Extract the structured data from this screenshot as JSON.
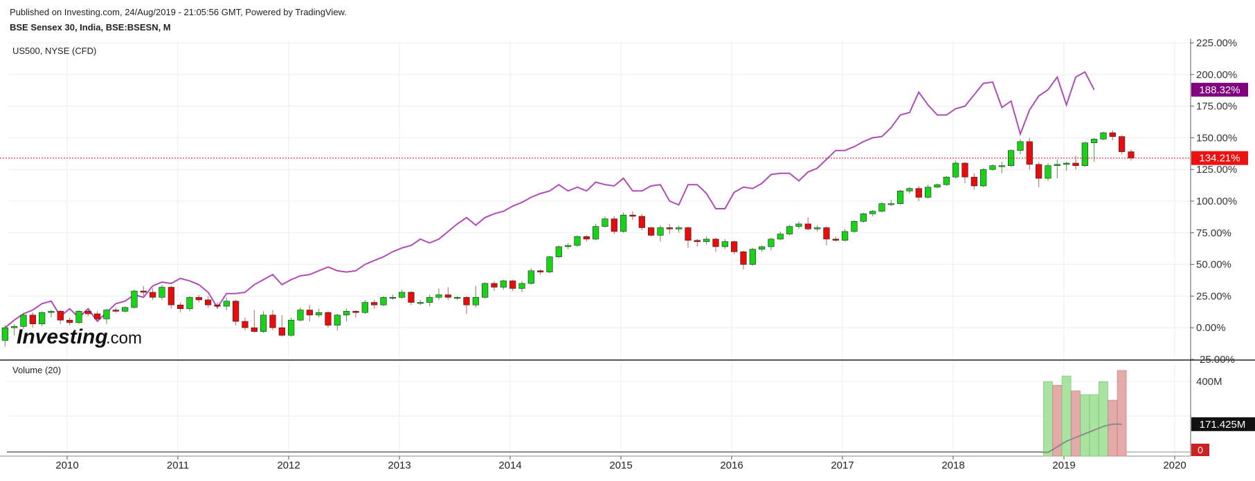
{
  "header": {
    "published": "Published on Investing.com, 24/Aug/2019 - 21:05:56 GMT, Powered by TradingView.",
    "symbol": "BSE Sensex 30, India, BSE:BSESN, M"
  },
  "logo": {
    "word": "Investing",
    "suffix": ".com"
  },
  "colors": {
    "up": "#18d418",
    "down": "#e80c0c",
    "compare": "#b04ab8",
    "volume_up": "#a8e4a0",
    "volume_down": "#e4aaaa",
    "volume_ma": "#8a8a8a",
    "last_price_line": "#e80c0c"
  },
  "chart_data": [
    {
      "type": "candlestick",
      "title": "BSE Sensex 30, India, BSE:BSESN, M",
      "y_unit": "percent change",
      "ylim": [
        -25,
        225
      ],
      "y_ticks": [
        "225.00%",
        "200.00%",
        "175.00%",
        "150.00%",
        "125.00%",
        "100.00%",
        "75.00%",
        "50.00%",
        "25.00%",
        "0.00%",
        "-25.00%"
      ],
      "x_ticks": [
        "2010",
        "2011",
        "2012",
        "2013",
        "2014",
        "2015",
        "2016",
        "2017",
        "2018",
        "2019",
        "2020"
      ],
      "grid": true,
      "last_price_label": "134.21%",
      "compare_series": {
        "name": "US500, NYSE (CFD)",
        "last_label": "188.32%",
        "values": [
          0,
          6,
          11,
          14,
          19,
          21,
          9,
          15,
          8,
          15,
          5,
          12,
          19,
          21,
          26,
          24,
          33,
          36,
          35,
          39,
          37,
          34,
          28,
          16,
          27,
          27,
          28,
          34,
          38,
          42,
          34,
          38,
          41,
          42,
          45,
          48,
          45,
          44,
          45,
          50,
          53,
          56,
          60,
          63,
          65,
          70,
          67,
          70,
          76,
          82,
          87,
          81,
          87,
          90,
          92,
          96,
          99,
          103,
          106,
          108,
          113,
          108,
          111,
          108,
          115,
          113,
          112,
          118,
          108,
          108,
          112,
          113,
          100,
          97,
          113,
          113,
          106,
          94,
          94,
          107,
          111,
          110,
          114,
          121,
          122,
          122,
          116,
          123,
          126,
          133,
          140,
          140,
          143,
          147,
          150,
          151,
          158,
          168,
          170,
          186,
          176,
          168,
          168,
          173,
          175,
          184,
          193,
          194,
          174,
          179,
          153,
          172,
          183,
          188,
          198,
          176,
          198,
          202,
          188
        ]
      },
      "series": [
        {
          "name": "BSE Sensex 30",
          "candles": [
            [
              -10,
              0,
              -15,
              2
            ],
            [
              0,
              1,
              -6,
              3
            ],
            [
              1,
              10,
              -1,
              12
            ],
            [
              10,
              3,
              0,
              12
            ],
            [
              3,
              12,
              1,
              13
            ],
            [
              12,
              13,
              8,
              14
            ],
            [
              13,
              6,
              3,
              14
            ],
            [
              6,
              4,
              2,
              8
            ],
            [
              4,
              13,
              3,
              14
            ],
            [
              13,
              11,
              9,
              14
            ],
            [
              11,
              7,
              5,
              13
            ],
            [
              7,
              14,
              3,
              15
            ],
            [
              14,
              13,
              12,
              16
            ],
            [
              13,
              16,
              12,
              17
            ],
            [
              16,
              29,
              15,
              30
            ],
            [
              29,
              28,
              25,
              33
            ],
            [
              28,
              24,
              22,
              31
            ],
            [
              24,
              32,
              22,
              34
            ],
            [
              32,
              18,
              15,
              33
            ],
            [
              18,
              15,
              12,
              20
            ],
            [
              15,
              24,
              13,
              25
            ],
            [
              24,
              22,
              20,
              26
            ],
            [
              22,
              18,
              16,
              25
            ],
            [
              18,
              17,
              15,
              20
            ],
            [
              17,
              21,
              14,
              24
            ],
            [
              21,
              5,
              2,
              22
            ],
            [
              5,
              0,
              -2,
              8
            ],
            [
              0,
              -3,
              -4,
              14
            ],
            [
              -3,
              10,
              -4,
              13
            ],
            [
              10,
              0,
              -2,
              14
            ],
            [
              0,
              -6,
              -7,
              10
            ],
            [
              -6,
              6,
              -7,
              8
            ],
            [
              6,
              14,
              5,
              16
            ],
            [
              14,
              10,
              5,
              18
            ],
            [
              10,
              12,
              8,
              15
            ],
            [
              12,
              2,
              0,
              13
            ],
            [
              2,
              10,
              -2,
              11
            ],
            [
              10,
              13,
              5,
              15
            ],
            [
              13,
              12,
              8,
              14
            ],
            [
              12,
              20,
              11,
              22
            ],
            [
              20,
              18,
              15,
              22
            ],
            [
              18,
              24,
              17,
              25
            ],
            [
              24,
              24,
              22,
              26
            ],
            [
              24,
              28,
              23,
              30
            ],
            [
              28,
              20,
              18,
              29
            ],
            [
              20,
              20,
              18,
              22
            ],
            [
              20,
              24,
              17,
              26
            ],
            [
              24,
              26,
              22,
              31
            ],
            [
              26,
              24,
              22,
              32
            ],
            [
              24,
              24,
              22,
              25
            ],
            [
              24,
              18,
              11,
              25
            ],
            [
              18,
              24,
              16,
              33
            ],
            [
              24,
              35,
              23,
              36
            ],
            [
              35,
              32,
              29,
              37
            ],
            [
              32,
              37,
              30,
              38
            ],
            [
              37,
              31,
              29,
              38
            ],
            [
              31,
              35,
              28,
              37
            ],
            [
              35,
              45,
              34,
              47
            ],
            [
              45,
              44,
              42,
              46
            ],
            [
              44,
              56,
              43,
              57
            ],
            [
              56,
              64,
              55,
              65
            ],
            [
              64,
              65,
              62,
              67
            ],
            [
              65,
              72,
              64,
              73
            ],
            [
              72,
              70,
              68,
              73
            ],
            [
              70,
              80,
              69,
              82
            ],
            [
              80,
              86,
              79,
              88
            ],
            [
              86,
              76,
              74,
              88
            ],
            [
              76,
              89,
              75,
              91
            ],
            [
              89,
              88,
              85,
              92
            ],
            [
              88,
              79,
              77,
              90
            ],
            [
              79,
              73,
              72,
              80
            ],
            [
              73,
              79,
              68,
              81
            ],
            [
              79,
              78,
              74,
              82
            ],
            [
              78,
              79,
              75,
              81
            ],
            [
              79,
              69,
              63,
              80
            ],
            [
              69,
              68,
              64,
              70
            ],
            [
              68,
              70,
              66,
              72
            ],
            [
              70,
              64,
              60,
              71
            ],
            [
              64,
              68,
              62,
              70
            ],
            [
              68,
              60,
              58,
              69
            ],
            [
              60,
              50,
              46,
              61
            ],
            [
              50,
              62,
              49,
              63
            ],
            [
              62,
              64,
              60,
              65
            ],
            [
              64,
              70,
              61,
              71
            ],
            [
              70,
              74,
              69,
              76
            ],
            [
              74,
              80,
              73,
              81
            ],
            [
              80,
              82,
              78,
              84
            ],
            [
              82,
              78,
              77,
              87
            ],
            [
              78,
              79,
              76,
              81
            ],
            [
              79,
              70,
              65,
              80
            ],
            [
              70,
              69,
              68,
              72
            ],
            [
              69,
              76,
              68,
              78
            ],
            [
              76,
              84,
              75,
              85
            ],
            [
              84,
              90,
              83,
              91
            ],
            [
              90,
              92,
              88,
              93
            ],
            [
              92,
              98,
              91,
              99
            ],
            [
              98,
              98,
              96,
              101
            ],
            [
              98,
              108,
              97,
              109
            ],
            [
              108,
              110,
              106,
              111
            ],
            [
              110,
              103,
              100,
              112
            ],
            [
              103,
              111,
              102,
              113
            ],
            [
              111,
              113,
              110,
              114
            ],
            [
              113,
              119,
              112,
              120
            ],
            [
              119,
              130,
              118,
              132
            ],
            [
              130,
              119,
              114,
              131
            ],
            [
              119,
              112,
              109,
              122
            ],
            [
              112,
              125,
              111,
              126
            ],
            [
              125,
              128,
              124,
              129
            ],
            [
              128,
              128,
              122,
              131
            ],
            [
              128,
              140,
              127,
              141
            ],
            [
              140,
              147,
              137,
              149
            ],
            [
              147,
              129,
              125,
              150
            ],
            [
              129,
              118,
              111,
              131
            ],
            [
              118,
              128,
              116,
              130
            ],
            [
              128,
              129,
              118,
              133
            ],
            [
              129,
              130,
              124,
              131
            ],
            [
              130,
              128,
              125,
              136
            ],
            [
              128,
              146,
              127,
              147
            ],
            [
              146,
              149,
              131,
              150
            ],
            [
              149,
              154,
              148,
              155
            ],
            [
              154,
              151,
              148,
              156
            ],
            [
              151,
              139,
              137,
              152
            ],
            [
              139,
              134,
              132,
              141
            ]
          ]
        }
      ]
    },
    {
      "type": "bar",
      "title": "Volume (20)",
      "y_ticks": [
        "400M"
      ],
      "last_ma_label": "171.425M",
      "last_volume_label": "0",
      "values_m": [
        400,
        380,
        430,
        350,
        330,
        330,
        400,
        300,
        460,
        0
      ],
      "directions": [
        "up",
        "down",
        "up",
        "down",
        "up",
        "up",
        "up",
        "down",
        "down",
        "down"
      ],
      "ma_values_m": [
        20,
        50,
        80,
        100,
        120,
        140,
        160,
        171.425,
        171.425
      ]
    }
  ]
}
